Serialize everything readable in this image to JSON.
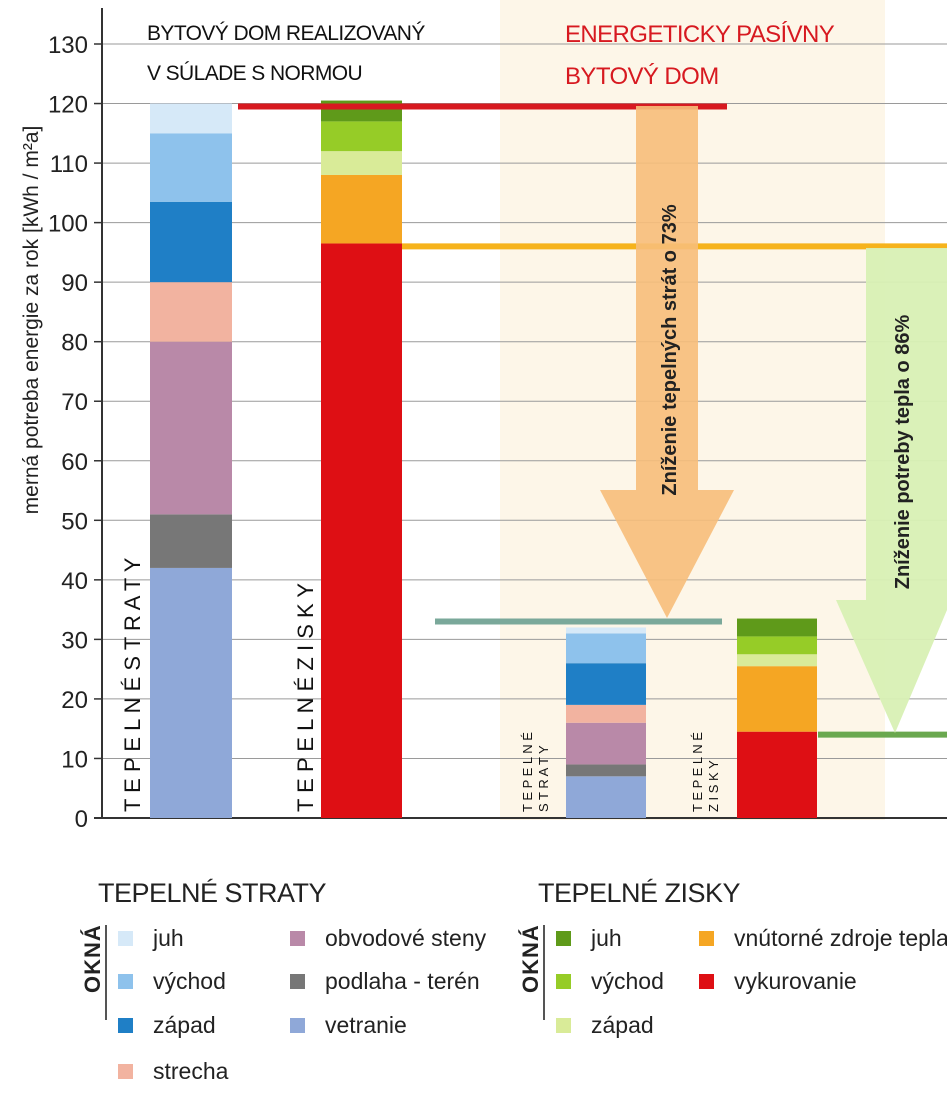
{
  "chart_data": {
    "type": "bar",
    "ylabel": "merná potreba energie za rok [kWh / m²a]",
    "ylim": [
      0,
      130
    ],
    "yticks": [
      0,
      10,
      20,
      30,
      40,
      50,
      60,
      70,
      80,
      90,
      100,
      110,
      120,
      130
    ],
    "grid": true,
    "annotations": {
      "norm_house": [
        "BYTOVÝ DOM REALIZOVANÝ",
        "V SÚLADE S NORMOU"
      ],
      "passive_house": [
        "ENERGETICKY PASÍVNY",
        "BYTOVÝ DOM"
      ],
      "loss_reduction": "Zníženie tepelných strát o 73%",
      "heat_reduction": "Zníženie potreby tepla o 86%"
    },
    "reference_lines": [
      {
        "value": 119.5,
        "color": "#d71920"
      },
      {
        "value": 96,
        "color": "#f6b31c"
      },
      {
        "value": 33,
        "color": "#7aa89a"
      },
      {
        "value": 14,
        "color": "#6aa84f"
      }
    ],
    "bars": [
      {
        "label": "TEPELNÉ STRATY",
        "label_lines": [
          "T E P E L N É   S T R A T Y"
        ],
        "segments": [
          {
            "name": "vetranie",
            "value": 42,
            "color": "#8fa8d8"
          },
          {
            "name": "podlaha - terén",
            "value": 9,
            "color": "#777777"
          },
          {
            "name": "obvodové steny",
            "value": 29,
            "color": "#b989a8"
          },
          {
            "name": "strecha",
            "value": 10,
            "color": "#f2b3a0"
          },
          {
            "name": "západ",
            "value": 13.5,
            "color": "#1f7fc6"
          },
          {
            "name": "východ",
            "value": 11.5,
            "color": "#8ec2ec"
          },
          {
            "name": "juh",
            "value": 5,
            "color": "#d6e9f8"
          }
        ]
      },
      {
        "label": "TEPELNÉ ZISKY",
        "label_lines": [
          "T E P E L N É   Z I S K Y"
        ],
        "segments": [
          {
            "name": "vykurovanie",
            "value": 96.5,
            "color": "#de0f14"
          },
          {
            "name": "vnútorné zdroje tepla",
            "value": 11.5,
            "color": "#f5a623"
          },
          {
            "name": "západ",
            "value": 4,
            "color": "#d9eb98"
          },
          {
            "name": "východ",
            "value": 5,
            "color": "#96cc27"
          },
          {
            "name": "juh",
            "value": 3.5,
            "color": "#5f9a1a"
          }
        ]
      },
      {
        "label": "TEPELNÉ STRATY",
        "label_lines": [
          "T E P E L N É",
          "S T R A T Y"
        ],
        "segments": [
          {
            "name": "vetranie",
            "value": 7,
            "color": "#8fa8d8"
          },
          {
            "name": "podlaha - terén",
            "value": 2,
            "color": "#777777"
          },
          {
            "name": "obvodové steny",
            "value": 7,
            "color": "#b989a8"
          },
          {
            "name": "strecha",
            "value": 3,
            "color": "#f2b3a0"
          },
          {
            "name": "západ",
            "value": 7,
            "color": "#1f7fc6"
          },
          {
            "name": "východ",
            "value": 5,
            "color": "#8ec2ec"
          },
          {
            "name": "juh",
            "value": 1,
            "color": "#d6e9f8"
          }
        ]
      },
      {
        "label": "TEPELNÉ ZISKY",
        "label_lines": [
          "T E P E L N É",
          "Z I S K Y"
        ],
        "segments": [
          {
            "name": "vykurovanie",
            "value": 14.5,
            "color": "#de0f14"
          },
          {
            "name": "vnútorné zdroje tepla",
            "value": 11,
            "color": "#f5a623"
          },
          {
            "name": "západ",
            "value": 2,
            "color": "#d9eb98"
          },
          {
            "name": "východ",
            "value": 3,
            "color": "#96cc27"
          },
          {
            "name": "juh",
            "value": 3,
            "color": "#5f9a1a"
          }
        ]
      }
    ]
  },
  "legend": {
    "okna_label": "OKNÁ",
    "losses": {
      "title": "TEPELNÉ STRATY",
      "items": [
        {
          "label": "juh",
          "color": "#d6e9f8"
        },
        {
          "label": "východ",
          "color": "#8ec2ec"
        },
        {
          "label": "západ",
          "color": "#1f7fc6"
        },
        {
          "label": "strecha",
          "color": "#f2b3a0"
        },
        {
          "label": "obvodové steny",
          "color": "#b989a8"
        },
        {
          "label": "podlaha - terén",
          "color": "#777777"
        },
        {
          "label": "vetranie",
          "color": "#8fa8d8"
        }
      ]
    },
    "gains": {
      "title": "TEPELNÉ ZISKY",
      "items": [
        {
          "label": "juh",
          "color": "#5f9a1a"
        },
        {
          "label": "východ",
          "color": "#96cc27"
        },
        {
          "label": "západ",
          "color": "#d9eb98"
        },
        {
          "label": "vnútorné zdroje tepla",
          "color": "#f5a623"
        },
        {
          "label": "vykurovanie",
          "color": "#de0f14"
        }
      ]
    }
  }
}
